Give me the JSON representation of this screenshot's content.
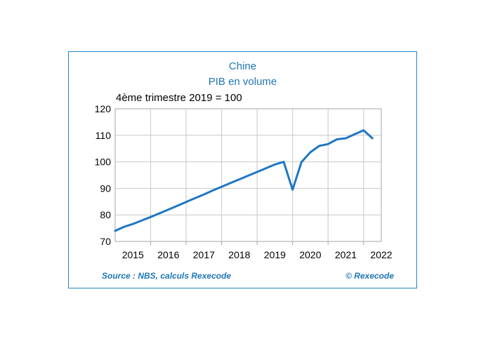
{
  "chart_data": {
    "type": "line",
    "title": "Chine",
    "subtitle": "PIB en volume",
    "ylabel": "4ème trimestre 2019 = 100",
    "xlabel": "",
    "ylim": [
      70,
      120
    ],
    "yticks": [
      70,
      80,
      90,
      100,
      110,
      120
    ],
    "xlim": [
      2015,
      2022.5
    ],
    "year_labels": [
      "2015",
      "2016",
      "2017",
      "2018",
      "2019",
      "2020",
      "2021",
      "2022"
    ],
    "grid": true,
    "series": [
      {
        "color": "#1f77c4",
        "x": [
          2015.0,
          2015.25,
          2015.5,
          2015.75,
          2016.0,
          2016.25,
          2016.5,
          2016.75,
          2017.0,
          2017.25,
          2017.5,
          2017.75,
          2018.0,
          2018.25,
          2018.5,
          2018.75,
          2019.0,
          2019.25,
          2019.5,
          2019.75,
          2020.0,
          2020.25,
          2020.5,
          2020.75,
          2021.0,
          2021.25,
          2021.5,
          2021.75,
          2022.0,
          2022.25
        ],
        "values": [
          74.0,
          75.5,
          76.6,
          77.9,
          79.2,
          80.6,
          82.0,
          83.4,
          84.9,
          86.3,
          87.7,
          89.2,
          90.6,
          92.0,
          93.4,
          94.8,
          96.2,
          97.6,
          99.0,
          100.0,
          89.5,
          99.9,
          103.6,
          106.0,
          106.7,
          108.5,
          108.9,
          110.4,
          111.9,
          108.9
        ]
      }
    ]
  },
  "footer": {
    "source": "Source : NBS, calculs Rexecode",
    "copyright": "© Rexecode"
  }
}
